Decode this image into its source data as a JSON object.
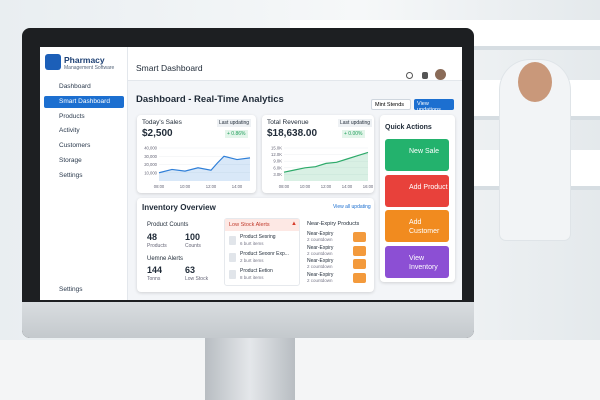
{
  "sidebar": {
    "brand": "Pharmacy",
    "tagline": "Management Software",
    "nav": [
      "Dashboard",
      "Smart Dashboard",
      "Products",
      "Activity",
      "Customers",
      "Storage",
      "Settings"
    ],
    "footer": "Settings"
  },
  "header": {
    "title": "Smart Dashboard"
  },
  "page": {
    "title": "Dashboard - Real-Time Analytics",
    "filter": "Mint Stends",
    "button": "View updations"
  },
  "sales": {
    "title": "Today's Sales",
    "value": "$2,500",
    "status": "Last updating",
    "change": "+ 0.86%",
    "chart": {
      "type": "line",
      "color": "#2f7fd8",
      "x": [
        8,
        9,
        10,
        11,
        12,
        12.5,
        13,
        14,
        15
      ],
      "values": [
        10000,
        14000,
        12000,
        16000,
        13000,
        22000,
        30000,
        26000,
        28000
      ],
      "xlim": [
        8,
        15
      ],
      "xticks": [
        {
          "value": 8,
          "label": "08:00"
        },
        {
          "value": 10,
          "label": "10:00"
        },
        {
          "value": 12,
          "label": "12:00"
        },
        {
          "value": 14,
          "label": "14:00"
        }
      ],
      "ylim": [
        0,
        40000
      ],
      "yticks": [
        {
          "value": 10000,
          "label": "10,000"
        },
        {
          "value": 20000,
          "label": "20,000"
        },
        {
          "value": 30000,
          "label": "30,000"
        },
        {
          "value": 40000,
          "label": "40,000"
        }
      ]
    }
  },
  "revenue": {
    "title": "Total Revenue",
    "value": "$18,638.00",
    "status": "Last updating",
    "change": "+ 0.00%",
    "chart": {
      "type": "line",
      "color": "#2eaa6a",
      "x": [
        8,
        9,
        10,
        11,
        12,
        13,
        14,
        15,
        16
      ],
      "values": [
        4000,
        5000,
        6000,
        6500,
        8000,
        8500,
        10000,
        11500,
        13000
      ],
      "xlim": [
        8,
        16
      ],
      "xticks": [
        {
          "value": 8,
          "label": "08:00"
        },
        {
          "value": 10,
          "label": "10:00"
        },
        {
          "value": 12,
          "label": "12:00"
        },
        {
          "value": 14,
          "label": "14:00"
        },
        {
          "value": 16,
          "label": "16:00"
        }
      ],
      "ylim": [
        0,
        15000
      ],
      "yticks": [
        {
          "value": 3000,
          "label": "3.0K"
        },
        {
          "value": 6000,
          "label": "6.0K"
        },
        {
          "value": 9000,
          "label": "9.0K"
        },
        {
          "value": 12000,
          "label": "12.0K"
        },
        {
          "value": 15000,
          "label": "15.0K"
        }
      ]
    }
  },
  "inventory": {
    "title": "Inventory Overview",
    "link": "View all updating",
    "counts": {
      "title": "Product Counts",
      "stats": [
        {
          "value": "48",
          "label": "Products"
        },
        {
          "value": "100",
          "label": "Counts"
        }
      ]
    },
    "alerts": {
      "title": "Uemne Alerts",
      "stats": [
        {
          "value": "144",
          "label": "Tonns"
        },
        {
          "value": "63",
          "label": "Low Stock"
        }
      ]
    },
    "low_stock": {
      "title": "Low Stock Alerts",
      "items": [
        {
          "name": "Product Sesring",
          "detail": "6 burt items"
        },
        {
          "name": "Product Seoonr Exp...",
          "detail": "2 burt items"
        },
        {
          "name": "Product Eetion",
          "detail": "8 burt items"
        }
      ]
    },
    "near_expiry": {
      "title": "Near-Expiry Products",
      "items": [
        {
          "name": "Near-Expiry",
          "detail": "2 countdown"
        },
        {
          "name": "Near-Expiry",
          "detail": "2 countdown"
        },
        {
          "name": "Near-Expiry",
          "detail": "2 countdown"
        },
        {
          "name": "Near-Expiry",
          "detail": "2 countdown"
        }
      ]
    }
  },
  "quick_actions": {
    "title": "Quick Actions",
    "buttons": [
      "New Sale",
      "Add Product",
      "Add Customer",
      "View Inventory"
    ]
  }
}
